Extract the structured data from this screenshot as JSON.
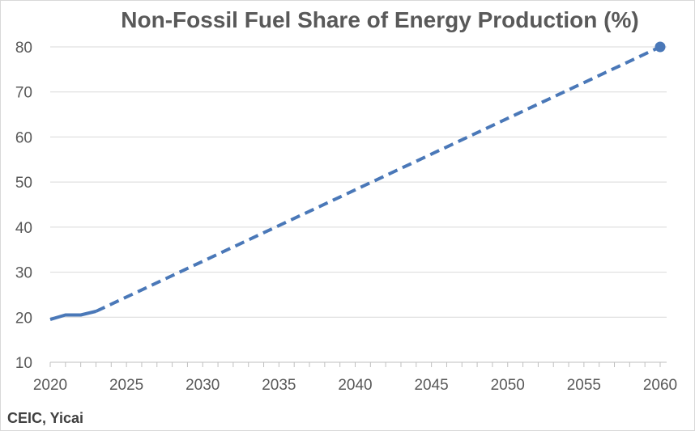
{
  "chart_data": {
    "type": "line",
    "title": "Non-Fossil Fuel Share of Energy Production (%)",
    "source": "CEIC, Yicai",
    "xlabel": "",
    "ylabel": "",
    "xlim": [
      2020,
      2060
    ],
    "ylim": [
      10,
      80
    ],
    "x_ticks": [
      2020,
      2025,
      2030,
      2035,
      2040,
      2045,
      2050,
      2055,
      2060
    ],
    "y_ticks": [
      10,
      20,
      30,
      40,
      50,
      60,
      70,
      80
    ],
    "grid": "horizontal",
    "legend": "none",
    "series": [
      {
        "style": "solid",
        "color": "#4a78b8",
        "points": [
          {
            "x": 2020,
            "y": 19.5
          },
          {
            "x": 2021,
            "y": 20.5
          },
          {
            "x": 2022,
            "y": 20.5
          },
          {
            "x": 2023,
            "y": 21.3
          }
        ]
      },
      {
        "style": "dashed",
        "color": "#4a78b8",
        "points": [
          {
            "x": 2023,
            "y": 21.3
          },
          {
            "x": 2060,
            "y": 80
          }
        ],
        "end_marker": true
      }
    ]
  }
}
